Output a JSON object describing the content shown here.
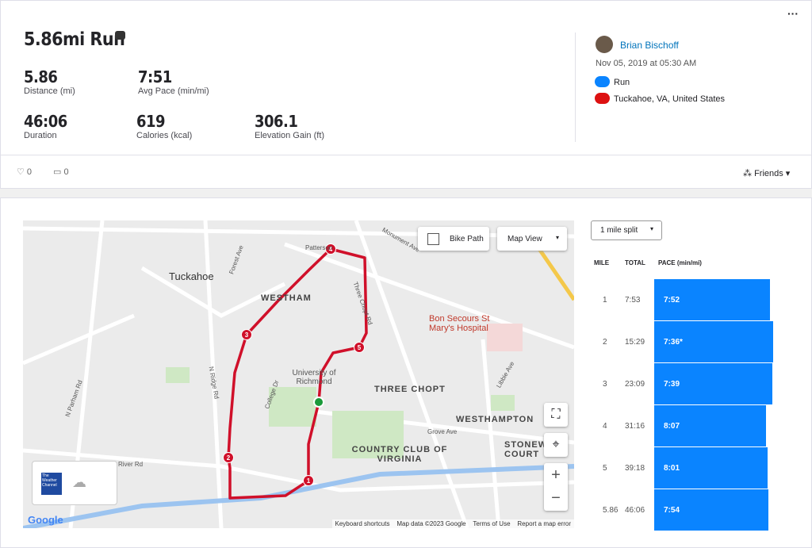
{
  "activity": {
    "title": "5.86mi Run",
    "stats": [
      {
        "value": "5.86",
        "label": "Distance (mi)"
      },
      {
        "value": "7:51",
        "label": "Avg Pace (min/mi)"
      },
      {
        "value": "46:06",
        "label": "Duration"
      },
      {
        "value": "619",
        "label": "Calories (kcal)"
      },
      {
        "value": "306.1",
        "label": "Elevation Gain (ft)"
      }
    ]
  },
  "athlete": {
    "name": "Brian Bischoff",
    "date": "Nov 05, 2019 at 05:30 AM",
    "activity_type": "Run",
    "location": "Tuckahoe, VA, United States"
  },
  "social": {
    "likes": "0",
    "comments": "0",
    "visibility": "Friends"
  },
  "map": {
    "controls": {
      "bike_path": "Bike Path",
      "view": "Map View"
    },
    "labels": [
      "Tuckahoe",
      "WESTHAM",
      "University of Richmond",
      "Bon Secours St Mary's Hospital",
      "THREE CHOPT",
      "WESTHAMPTON",
      "COUNTRY CLUB OF VIRGINIA",
      "STONEWALL COURT"
    ],
    "roads": [
      "Patterson",
      "Monument Ave",
      "Three Chopt Rd",
      "Forest Ave",
      "N Ridge Rd",
      "N Parham Rd",
      "River Rd",
      "College Dr",
      "Grove Ave",
      "Libbie Ave"
    ],
    "markers": [
      "1",
      "2",
      "3",
      "4",
      "5"
    ],
    "logo": "Google",
    "weather": "The Weather Channel",
    "footer": [
      "Keyboard shortcuts",
      "Map data ©2023 Google",
      "Terms of Use",
      "Report a map error"
    ]
  },
  "splits": {
    "selector": "1 mile split",
    "columns": [
      "MILE",
      "TOTAL",
      "PACE (min/mi)"
    ],
    "rows": [
      [
        "1",
        "7:53",
        "7:52"
      ],
      [
        "2",
        "15:29",
        "7:36*"
      ],
      [
        "3",
        "23:09",
        "7:39"
      ],
      [
        "4",
        "31:16",
        "8:07"
      ],
      [
        "5",
        "39:18",
        "8:01"
      ],
      [
        "5.86",
        "46:06",
        "7:54"
      ]
    ]
  }
}
